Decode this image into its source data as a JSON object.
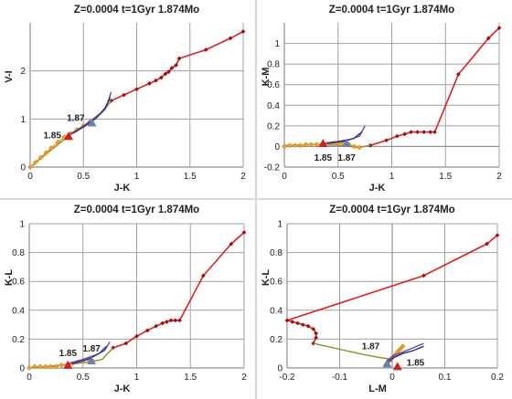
{
  "colors": {
    "red_track": "#e02020",
    "red_marker": "#a01010",
    "olive": "#8b8c2a",
    "orange": "#f0a020",
    "purple": "#7040a0",
    "blue": "#2030a0",
    "marker_red": "#d02020",
    "marker_blue": "#6a80b0",
    "grid": "#a0a0a0",
    "axis": "#909090"
  },
  "chart_data": [
    {
      "type": "line",
      "title": "Z=0.0004  t=1Gyr  1.874Mo",
      "xlabel": "J-K",
      "ylabel": "V-I",
      "xlim": [
        0,
        2
      ],
      "ylim": [
        0,
        3
      ],
      "xticks": [
        "0",
        "0.5",
        "1",
        "1.5",
        "2"
      ],
      "yticks": [
        "0",
        "1",
        "2"
      ],
      "series": [
        {
          "color": "red",
          "points": [
            [
              0.76,
              1.38
            ],
            [
              0.88,
              1.5
            ],
            [
              1.0,
              1.62
            ],
            [
              1.12,
              1.74
            ],
            [
              1.18,
              1.8
            ],
            [
              1.23,
              1.86
            ],
            [
              1.27,
              1.94
            ],
            [
              1.3,
              1.98
            ],
            [
              1.33,
              2.06
            ],
            [
              1.37,
              2.12
            ],
            [
              1.4,
              2.26
            ],
            [
              1.65,
              2.44
            ],
            [
              1.88,
              2.68
            ],
            [
              2.0,
              2.82
            ]
          ],
          "markers": true
        },
        {
          "color": "olive",
          "points": [
            [
              0.02,
              0.02
            ],
            [
              0.1,
              0.18
            ],
            [
              0.25,
              0.45
            ],
            [
              0.42,
              0.75
            ],
            [
              0.6,
              1.0
            ],
            [
              0.7,
              1.2
            ],
            [
              0.76,
              1.38
            ]
          ],
          "markers": false
        },
        {
          "color": "orange",
          "points": [
            [
              0.0,
              0.0
            ],
            [
              0.05,
              0.1
            ],
            [
              0.1,
              0.2
            ],
            [
              0.15,
              0.3
            ],
            [
              0.2,
              0.4
            ],
            [
              0.26,
              0.52
            ],
            [
              0.32,
              0.62
            ],
            [
              0.38,
              0.7
            ],
            [
              0.44,
              0.78
            ],
            [
              0.5,
              0.86
            ],
            [
              0.56,
              0.94
            ]
          ],
          "markers": true
        },
        {
          "color": "purple",
          "points": [
            [
              0.36,
              0.66
            ],
            [
              0.48,
              0.82
            ],
            [
              0.58,
              0.98
            ],
            [
              0.66,
              1.12
            ],
            [
              0.72,
              1.28
            ],
            [
              0.76,
              1.56
            ]
          ],
          "markers": false
        },
        {
          "color": "blue",
          "points": [
            [
              0.4,
              0.7
            ],
            [
              0.52,
              0.86
            ],
            [
              0.62,
              1.02
            ],
            [
              0.7,
              1.2
            ],
            [
              0.75,
              1.46
            ]
          ],
          "markers": false
        }
      ],
      "annotations": [
        {
          "label": "1.85",
          "x": 0.36,
          "y": 0.64,
          "marker": "red-triangle"
        },
        {
          "label": "1.87",
          "x": 0.58,
          "y": 0.92,
          "marker": "blue-triangle"
        }
      ]
    },
    {
      "type": "line",
      "title": "Z=0.0004  t=1Gyr  1.874Mo",
      "xlabel": "J-K",
      "ylabel": "K-M",
      "xlim": [
        0,
        2
      ],
      "ylim": [
        -0.2,
        1.2
      ],
      "xticks": [
        "0",
        "0.5",
        "1",
        "1.5",
        "2"
      ],
      "yticks": [
        "-0.2",
        "0",
        "0.2",
        "0.4",
        "0.6",
        "0.8",
        "1"
      ],
      "series": [
        {
          "color": "red",
          "points": [
            [
              0.8,
              0.01
            ],
            [
              0.95,
              0.06
            ],
            [
              1.05,
              0.1
            ],
            [
              1.12,
              0.12
            ],
            [
              1.18,
              0.14
            ],
            [
              1.24,
              0.14
            ],
            [
              1.3,
              0.14
            ],
            [
              1.36,
              0.14
            ],
            [
              1.4,
              0.14
            ],
            [
              1.62,
              0.7
            ],
            [
              1.9,
              1.05
            ],
            [
              2.0,
              1.15
            ]
          ],
          "markers": true
        },
        {
          "color": "olive",
          "points": [
            [
              0.0,
              0.01
            ],
            [
              0.3,
              0.02
            ],
            [
              0.55,
              0.01
            ],
            [
              0.68,
              -0.01
            ],
            [
              0.74,
              0.0
            ],
            [
              0.8,
              0.01
            ]
          ],
          "markers": false
        },
        {
          "color": "orange",
          "points": [
            [
              0.0,
              0.0
            ],
            [
              0.05,
              0.01
            ],
            [
              0.1,
              0.01
            ],
            [
              0.15,
              0.01
            ],
            [
              0.2,
              0.02
            ],
            [
              0.25,
              0.02
            ],
            [
              0.3,
              0.02
            ],
            [
              0.35,
              0.02
            ],
            [
              0.4,
              0.02
            ],
            [
              0.45,
              0.03
            ],
            [
              0.5,
              0.03
            ],
            [
              0.55,
              0.03
            ],
            [
              0.6,
              0.02
            ],
            [
              0.65,
              0.0
            ],
            [
              0.7,
              -0.01
            ]
          ],
          "markers": true
        },
        {
          "color": "purple",
          "points": [
            [
              0.36,
              0.03
            ],
            [
              0.5,
              0.05
            ],
            [
              0.62,
              0.07
            ],
            [
              0.7,
              0.1
            ],
            [
              0.75,
              0.2
            ]
          ],
          "markers": false
        },
        {
          "color": "blue",
          "points": [
            [
              0.4,
              0.03
            ],
            [
              0.55,
              0.05
            ],
            [
              0.65,
              0.08
            ],
            [
              0.72,
              0.14
            ]
          ],
          "markers": false
        }
      ],
      "annotations": [
        {
          "label": "1.85",
          "x": 0.36,
          "y": 0.03,
          "marker": "red-triangle"
        },
        {
          "label": "1.87",
          "x": 0.58,
          "y": 0.03,
          "marker": "blue-triangle"
        }
      ]
    },
    {
      "type": "line",
      "title": "Z=0.0004  t=1Gyr  1.874Mo",
      "xlabel": "J-K",
      "ylabel": "K-L",
      "xlim": [
        0,
        2
      ],
      "ylim": [
        0,
        1
      ],
      "xticks": [
        "0",
        "0.5",
        "1",
        "1.5",
        "2"
      ],
      "yticks": [
        "0",
        "0.2",
        "0.4",
        "0.6",
        "0.8",
        "1"
      ],
      "series": [
        {
          "color": "red",
          "points": [
            [
              0.78,
              0.14
            ],
            [
              0.9,
              0.17
            ],
            [
              1.0,
              0.22
            ],
            [
              1.1,
              0.26
            ],
            [
              1.18,
              0.29
            ],
            [
              1.24,
              0.31
            ],
            [
              1.28,
              0.32
            ],
            [
              1.32,
              0.33
            ],
            [
              1.36,
              0.33
            ],
            [
              1.4,
              0.33
            ],
            [
              1.62,
              0.64
            ],
            [
              1.88,
              0.86
            ],
            [
              2.0,
              0.94
            ]
          ],
          "markers": true
        },
        {
          "color": "olive",
          "points": [
            [
              0.0,
              0.0
            ],
            [
              0.3,
              0.02
            ],
            [
              0.55,
              0.04
            ],
            [
              0.68,
              0.06
            ],
            [
              0.78,
              0.14
            ]
          ],
          "markers": false
        },
        {
          "color": "orange",
          "points": [
            [
              0.0,
              0.0
            ],
            [
              0.05,
              0.01
            ],
            [
              0.1,
              0.01
            ],
            [
              0.15,
              0.01
            ],
            [
              0.2,
              0.01
            ],
            [
              0.25,
              0.01
            ],
            [
              0.3,
              0.02
            ],
            [
              0.35,
              0.02
            ],
            [
              0.4,
              0.03
            ],
            [
              0.45,
              0.04
            ],
            [
              0.5,
              0.05
            ],
            [
              0.55,
              0.06
            ]
          ],
          "markers": true
        },
        {
          "color": "purple",
          "points": [
            [
              0.36,
              0.03
            ],
            [
              0.5,
              0.06
            ],
            [
              0.62,
              0.09
            ],
            [
              0.7,
              0.12
            ],
            [
              0.75,
              0.18
            ]
          ],
          "markers": false
        },
        {
          "color": "blue",
          "points": [
            [
              0.4,
              0.03
            ],
            [
              0.55,
              0.06
            ],
            [
              0.65,
              0.1
            ],
            [
              0.72,
              0.15
            ]
          ],
          "markers": false
        }
      ],
      "annotations": [
        {
          "label": "1.85",
          "x": 0.36,
          "y": 0.02,
          "marker": "red-triangle"
        },
        {
          "label": "1.87",
          "x": 0.58,
          "y": 0.05,
          "marker": "blue-triangle"
        }
      ]
    },
    {
      "type": "line",
      "title": "Z=0.0004  t=1Gyr  1.874Mo",
      "xlabel": "L-M",
      "ylabel": "K-L",
      "xlim": [
        -0.2,
        0.2
      ],
      "ylim": [
        0,
        1
      ],
      "xticks": [
        "-0.2",
        "-0.1",
        "0",
        "0.1",
        "0.2"
      ],
      "yticks": [
        "0",
        "0.2",
        "0.4",
        "0.6",
        "0.8",
        "1"
      ],
      "series": [
        {
          "color": "red",
          "points": [
            [
              0.2,
              0.92
            ],
            [
              0.18,
              0.86
            ],
            [
              0.06,
              0.64
            ],
            [
              -0.2,
              0.33
            ],
            [
              -0.19,
              0.32
            ],
            [
              -0.18,
              0.31
            ],
            [
              -0.17,
              0.3
            ],
            [
              -0.16,
              0.29
            ],
            [
              -0.15,
              0.27
            ],
            [
              -0.145,
              0.24
            ],
            [
              -0.145,
              0.21
            ],
            [
              -0.15,
              0.17
            ]
          ],
          "markers": true
        },
        {
          "color": "olive",
          "points": [
            [
              -0.15,
              0.17
            ],
            [
              -0.1,
              0.13
            ],
            [
              -0.05,
              0.09
            ],
            [
              -0.02,
              0.07
            ],
            [
              0.0,
              0.06
            ]
          ],
          "markers": false
        },
        {
          "color": "orange",
          "points": [
            [
              -0.01,
              0.03
            ],
            [
              -0.005,
              0.05
            ],
            [
              0.0,
              0.07
            ],
            [
              0.005,
              0.09
            ],
            [
              0.01,
              0.11
            ],
            [
              0.015,
              0.13
            ],
            [
              0.02,
              0.15
            ]
          ],
          "markers": true
        },
        {
          "color": "purple",
          "points": [
            [
              -0.01,
              0.05
            ],
            [
              0.0,
              0.08
            ],
            [
              0.02,
              0.11
            ],
            [
              0.04,
              0.14
            ],
            [
              0.06,
              0.17
            ]
          ],
          "markers": false
        },
        {
          "color": "blue",
          "points": [
            [
              -0.008,
              0.04
            ],
            [
              0.002,
              0.07
            ],
            [
              0.02,
              0.1
            ],
            [
              0.04,
              0.12
            ],
            [
              0.06,
              0.15
            ]
          ],
          "markers": false
        }
      ],
      "annotations": [
        {
          "label": "1.85",
          "x": 0.01,
          "y": 0.01,
          "marker": "red-triangle"
        },
        {
          "label": "1.87",
          "x": -0.01,
          "y": 0.03,
          "marker": "blue-triangle"
        }
      ]
    }
  ]
}
